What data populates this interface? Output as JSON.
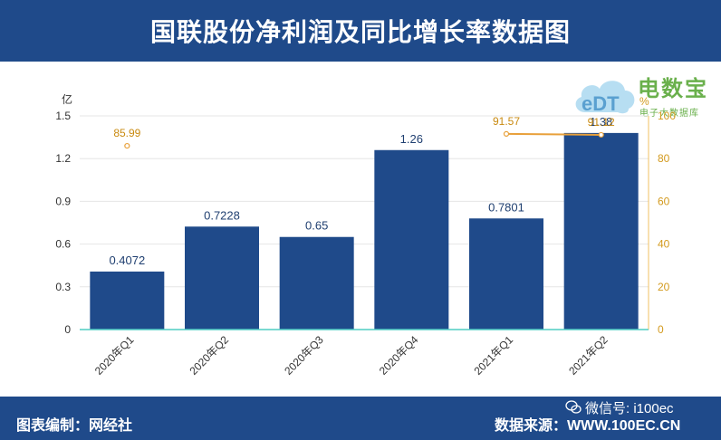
{
  "header": {
    "title": "国联股份净利润及同比增长率数据图"
  },
  "footer": {
    "left_text": "图表编制：网经社",
    "right_text": "数据来源：WWW.100EC.CN",
    "wechat_text": "微信号: i100ec"
  },
  "logo": {
    "main_text": "电数宝",
    "cloud_text": "eDT",
    "sub_text": "电子大数据库"
  },
  "colors": {
    "header_bg": "#1f4a8a",
    "bar": "#1f4a8a",
    "line": "#e8a03a",
    "baseline": "#4ecdc4",
    "right_axis_text": "#d39a1e"
  },
  "chart_data": {
    "type": "bar",
    "categories": [
      "2020年Q1",
      "2020年Q2",
      "2020年Q3",
      "2020年Q4",
      "2021年Q1",
      "2021年Q2"
    ],
    "series": [
      {
        "values": [
          0.4072,
          0.7228,
          0.65,
          1.26,
          0.7801,
          1.38
        ],
        "data_labels": [
          "0.4072",
          "0.7228",
          "0.65",
          "1.26",
          "0.7801",
          "1.38"
        ]
      },
      {
        "type": "line",
        "axis": "right",
        "values": [
          85.99,
          null,
          null,
          null,
          91.57,
          91.12
        ],
        "data_labels": [
          "85.99",
          "",
          "",
          "",
          "91.57",
          "91.12"
        ]
      }
    ],
    "y_left": {
      "unit": "亿",
      "ylim": [
        0,
        1.5
      ],
      "ticks": [
        "0",
        "0.3",
        "0.6",
        "0.9",
        "1.2",
        "1.5"
      ]
    },
    "y_right": {
      "unit": "%",
      "ylim": [
        0,
        100
      ],
      "ticks": [
        "0",
        "20",
        "40",
        "60",
        "80",
        "100"
      ]
    },
    "grid": true
  }
}
